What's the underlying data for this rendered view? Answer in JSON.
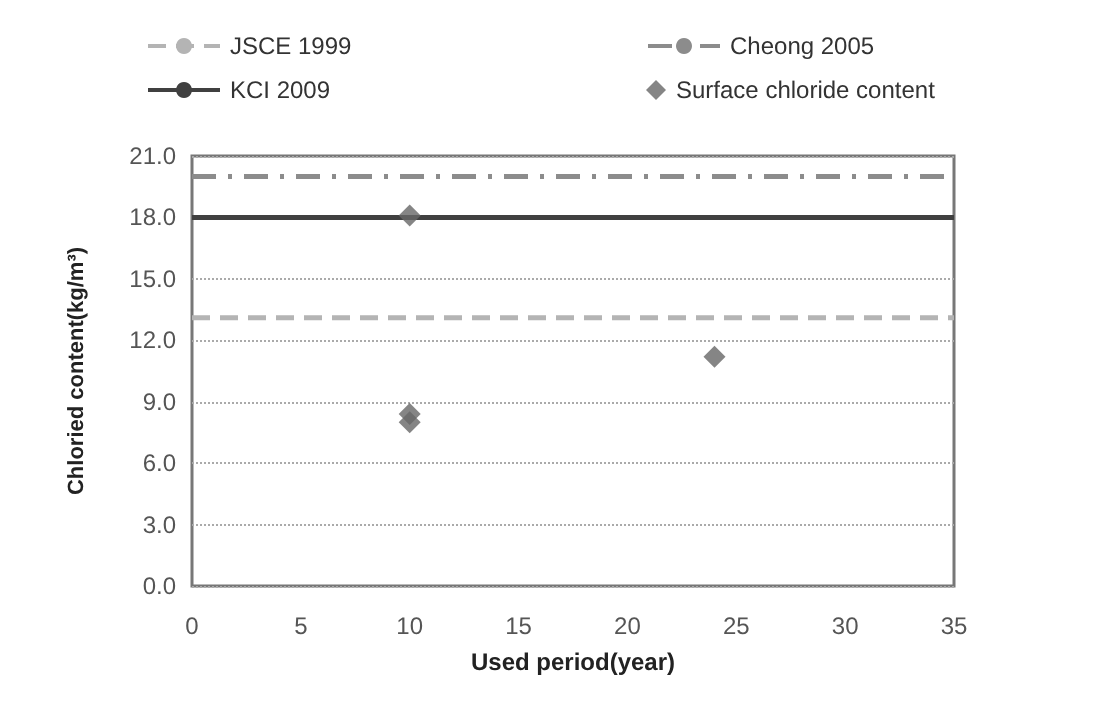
{
  "chart_data": {
    "type": "scatter",
    "xlabel": "Used period(year)",
    "ylabel": "Chloried content(kg/m³)",
    "xlim": [
      0,
      35
    ],
    "xticks": [
      0,
      5,
      10,
      15,
      20,
      25,
      30,
      35
    ],
    "ylim": [
      0,
      21
    ],
    "yticks": [
      {
        "value": 0,
        "label": "0.0"
      },
      {
        "value": 3,
        "label": "3.0"
      },
      {
        "value": 6,
        "label": "6.0"
      },
      {
        "value": 9,
        "label": "9.0"
      },
      {
        "value": 12,
        "label": "12.0"
      },
      {
        "value": 15,
        "label": "15.0"
      },
      {
        "value": 18,
        "label": "18.0"
      },
      {
        "value": 21,
        "label": "21.0"
      }
    ],
    "grid": "y",
    "legend": "top",
    "series": [
      {
        "name": "JSCE 1999",
        "type": "line",
        "color": "#b4b4b4",
        "line_style": "dashed",
        "marker": "none",
        "x": [
          0,
          35
        ],
        "values": [
          13.1,
          13.1
        ]
      },
      {
        "name": "Cheong 2005",
        "type": "line",
        "color": "#8c8c8c",
        "line_style": "dashdot",
        "marker": "none",
        "x": [
          0,
          35
        ],
        "values": [
          20,
          20
        ]
      },
      {
        "name": "KCI 2009",
        "type": "line",
        "color": "#404040",
        "line_style": "solid",
        "marker": "none",
        "x": [
          0,
          35
        ],
        "values": [
          18,
          18
        ]
      },
      {
        "name": "Surface chloride content",
        "color": "#666666",
        "marker": "diamond",
        "x": [
          10,
          10,
          10,
          24
        ],
        "values": [
          18.1,
          8.4,
          8.0,
          11.2
        ]
      }
    ]
  }
}
